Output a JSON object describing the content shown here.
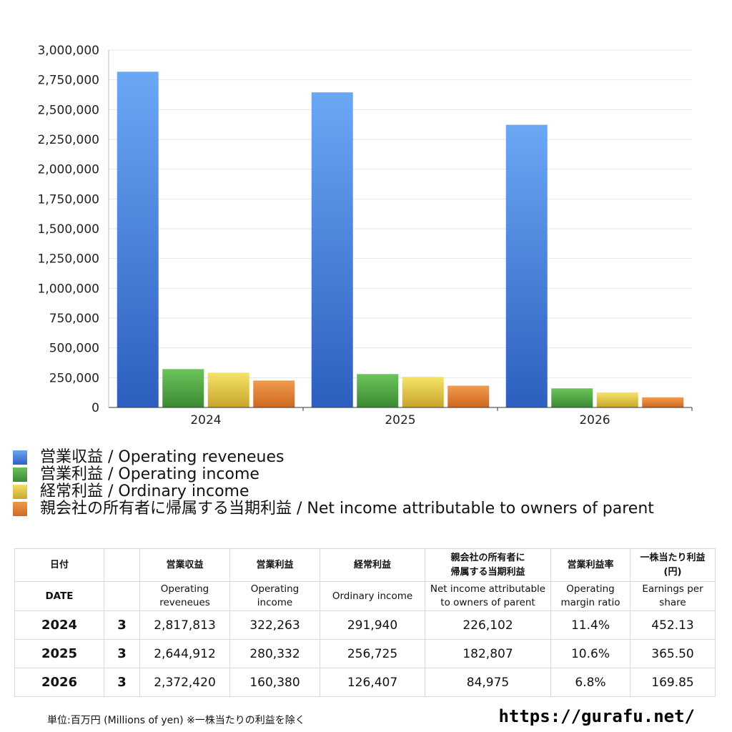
{
  "chart_data": {
    "type": "bar",
    "categories": [
      "2024",
      "2025",
      "2026"
    ],
    "ylim": [
      0,
      3000000
    ],
    "yticks": [
      "0",
      "250,000",
      "500,000",
      "750,000",
      "1,000,000",
      "1,250,000",
      "1,500,000",
      "1,750,000",
      "2,000,000",
      "2,250,000",
      "2,500,000",
      "2,750,000",
      "3,000,000"
    ],
    "ytick_values": [
      0,
      250000,
      500000,
      750000,
      1000000,
      1250000,
      1500000,
      1750000,
      2000000,
      2250000,
      2500000,
      2750000,
      3000000
    ],
    "grid": true,
    "legend_position": "bottom",
    "series": [
      {
        "name": "営業収益 / Operating reveneues",
        "color": "#4f8fe0",
        "values": [
          2817813,
          2644912,
          2372420
        ]
      },
      {
        "name": "営業利益 / Operating income",
        "color": "#55a845",
        "values": [
          322263,
          280332,
          160380
        ]
      },
      {
        "name": "経常利益 / Ordinary income",
        "color": "#e3c640",
        "values": [
          291940,
          256725,
          126407
        ]
      },
      {
        "name": "親会社の所有者に帰属する当期利益 / Net income attributable to owners of parent",
        "color": "#e07b30",
        "values": [
          226102,
          182807,
          84975
        ]
      }
    ]
  },
  "table": {
    "header_jp": [
      "日付",
      "",
      "営業収益",
      "営業利益",
      "経常利益",
      "親会社の所有者に\n帰属する当期利益",
      "営業利益率",
      "一株当たり利益\n(円)"
    ],
    "header_en": [
      "DATE",
      "",
      "Operating\nreveneues",
      "Operating\nincome",
      "Ordinary income",
      "Net income attributable\nto owners of parent",
      "Operating\nmargin ratio",
      "Earnings per\nshare"
    ],
    "rows": [
      [
        "2024",
        "3",
        "2,817,813",
        "322,263",
        "291,940",
        "226,102",
        "11.4%",
        "452.13"
      ],
      [
        "2025",
        "3",
        "2,644,912",
        "280,332",
        "256,725",
        "182,807",
        "10.6%",
        "365.50"
      ],
      [
        "2026",
        "3",
        "2,372,420",
        "160,380",
        "126,407",
        "84,975",
        "6.8%",
        "169.85"
      ]
    ]
  },
  "footnote": "単位:百万円 (Millions of yen) ※一株当たりの利益を除く",
  "site": "https://gurafu.net/"
}
